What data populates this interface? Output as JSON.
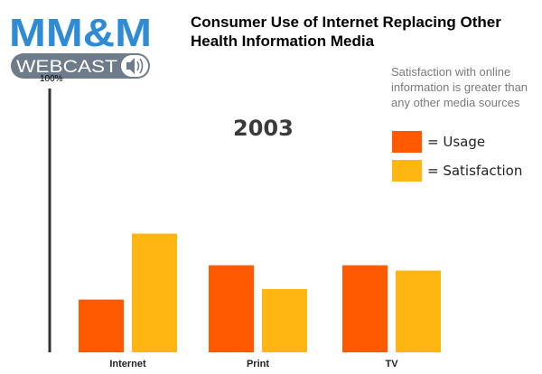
{
  "logo": {
    "top_text": "MM&M",
    "bottom_text": "WEBCAST",
    "icon": "speaker-icon"
  },
  "title_lines": [
    "Consumer Use of Internet Replacing Other",
    "Health Information Media"
  ],
  "subtitle_lines": [
    "Satisfaction with online",
    "information is greater than",
    "any other media sources"
  ],
  "colors": {
    "usage": "#FF5A00",
    "satisfaction": "#FFB612",
    "logo_blue": "#2E8BD4",
    "logo_gray": "#6E7B8B"
  },
  "chart_data": {
    "type": "bar",
    "title": "Consumer Use of Internet Replacing Other Health Information Media",
    "annotation": "2003",
    "ymax_label": "100%",
    "ylim": [
      0,
      100
    ],
    "categories": [
      "Internet",
      "Print",
      "TV"
    ],
    "series": [
      {
        "name": "Usage",
        "legend": "= Usage",
        "values": [
          20,
          33,
          33
        ]
      },
      {
        "name": "Satisfaction",
        "legend": "= Satisfaction",
        "values": [
          45,
          24,
          31
        ]
      }
    ],
    "xlabel": "",
    "ylabel": "",
    "grid": false,
    "legend_position": "right"
  }
}
